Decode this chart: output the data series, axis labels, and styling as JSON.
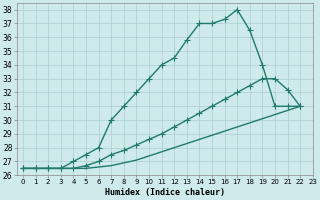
{
  "line1_x": [
    0,
    1,
    2,
    3,
    4,
    5,
    6,
    7,
    8,
    9,
    10,
    11,
    12,
    13,
    14,
    15,
    16,
    17,
    18,
    19,
    20,
    21,
    22
  ],
  "line1_y": [
    26.5,
    26.5,
    26.5,
    26.5,
    27.0,
    27.5,
    28.0,
    30.0,
    31.0,
    32.0,
    33.0,
    34.0,
    34.5,
    35.8,
    37.0,
    37.0,
    37.3,
    38.0,
    36.5,
    34.0,
    31.0,
    31.0,
    31.0
  ],
  "line2_x": [
    0,
    1,
    2,
    3,
    4,
    5,
    6,
    7,
    8,
    9,
    10,
    11,
    12,
    13,
    14,
    15,
    16,
    17,
    18,
    19,
    20,
    21,
    22
  ],
  "line2_y": [
    26.5,
    26.5,
    26.5,
    26.5,
    26.5,
    26.7,
    27.0,
    27.5,
    27.8,
    28.2,
    28.6,
    29.0,
    29.5,
    30.0,
    30.5,
    31.0,
    31.5,
    32.0,
    32.5,
    33.0,
    33.0,
    32.2,
    31.0
  ],
  "line3_x": [
    0,
    1,
    2,
    3,
    4,
    5,
    6,
    7,
    8,
    9,
    10,
    11,
    12,
    13,
    14,
    15,
    16,
    17,
    18,
    19,
    20,
    21,
    22
  ],
  "line3_y": [
    26.5,
    26.5,
    26.5,
    26.5,
    26.5,
    26.5,
    26.6,
    26.7,
    26.9,
    27.1,
    27.4,
    27.7,
    28.0,
    28.3,
    28.6,
    28.9,
    29.2,
    29.5,
    29.8,
    30.1,
    30.4,
    30.7,
    31.0
  ],
  "color": "#217a6e",
  "bg_color": "#ceeaea",
  "grid_color": "#aacece",
  "xlabel": "Humidex (Indice chaleur)",
  "ylim": [
    26,
    38.5
  ],
  "xlim": [
    -0.5,
    23
  ],
  "yticks": [
    26,
    27,
    28,
    29,
    30,
    31,
    32,
    33,
    34,
    35,
    36,
    37,
    38
  ],
  "xticks": [
    0,
    1,
    2,
    3,
    4,
    5,
    6,
    7,
    8,
    9,
    10,
    11,
    12,
    13,
    14,
    15,
    16,
    17,
    18,
    19,
    20,
    21,
    22,
    23
  ],
  "marker": "+",
  "marker_size": 4,
  "linewidth": 1.0
}
